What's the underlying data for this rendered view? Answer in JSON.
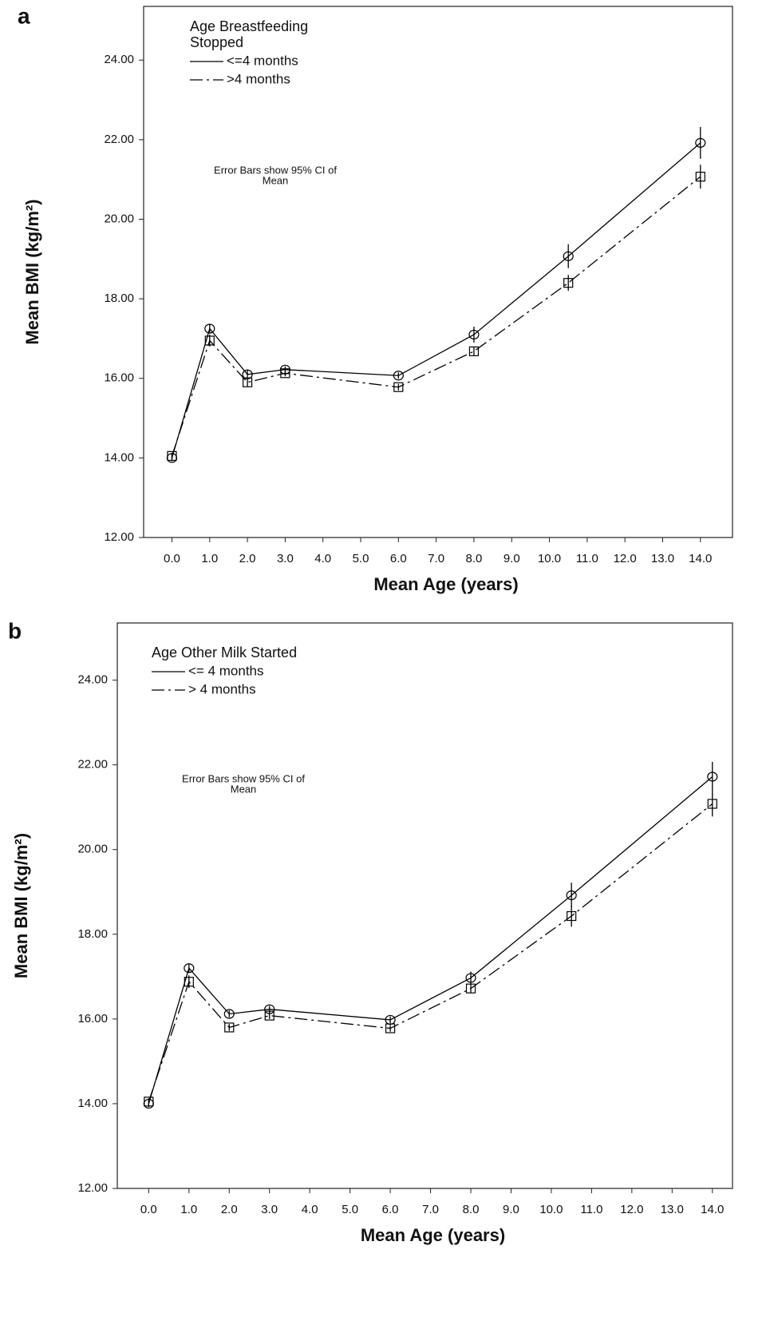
{
  "chart_data": [
    {
      "type": "line",
      "panel": "a",
      "legend_title_lines": [
        "Age Breastfeeding",
        "Stopped"
      ],
      "annotation_lines": [
        "Error Bars show  95% CI of",
        "Mean"
      ],
      "xlabel": "Mean Age (years)",
      "ylabel": "Mean BMI (kg/m²)",
      "x": [
        0,
        1,
        2,
        3,
        6,
        8,
        10.5,
        14
      ],
      "series": [
        {
          "name": "<=4 months",
          "color": "#000000",
          "line_style": "solid",
          "marker": "circle",
          "values": [
            14.0,
            17.25,
            16.1,
            16.22,
            16.07,
            17.1,
            19.07,
            21.92
          ],
          "errors": [
            0.08,
            0.1,
            0.1,
            0.08,
            0.08,
            0.2,
            0.3,
            0.4
          ]
        },
        {
          "name": ">4 months",
          "color": "#000000",
          "line_style": "dashdot",
          "marker": "square",
          "values": [
            14.05,
            16.95,
            15.9,
            16.13,
            15.78,
            16.68,
            18.4,
            21.07
          ],
          "errors": [
            0.08,
            0.15,
            0.1,
            0.08,
            0.08,
            0.1,
            0.2,
            0.3
          ]
        }
      ],
      "xlim": [
        -0.75,
        14.85
      ],
      "ylim": [
        12,
        25.35
      ],
      "xticks": [
        {
          "value": 0,
          "label": "0.0"
        },
        {
          "value": 1,
          "label": "1.0"
        },
        {
          "value": 2,
          "label": "2.0"
        },
        {
          "value": 3,
          "label": "3.0"
        },
        {
          "value": 4,
          "label": "4.0"
        },
        {
          "value": 5,
          "label": "5.0"
        },
        {
          "value": 6,
          "label": "6.0"
        },
        {
          "value": 7,
          "label": "7.0"
        },
        {
          "value": 8,
          "label": "8.0"
        },
        {
          "value": 9,
          "label": "9.0"
        },
        {
          "value": 10,
          "label": "10.0"
        },
        {
          "value": 11,
          "label": "11.0"
        },
        {
          "value": 12,
          "label": "12.0"
        },
        {
          "value": 13,
          "label": "13.0"
        },
        {
          "value": 14,
          "label": "14.0"
        }
      ],
      "yticks": [
        {
          "value": 12,
          "label": "12.00"
        },
        {
          "value": 14,
          "label": "14.00"
        },
        {
          "value": 16,
          "label": "16.00"
        },
        {
          "value": 18,
          "label": "18.00"
        },
        {
          "value": 20,
          "label": "20.00"
        },
        {
          "value": 22,
          "label": "22.00"
        },
        {
          "value": 24,
          "label": "24.00"
        }
      ]
    },
    {
      "type": "line",
      "panel": "b",
      "legend_title_lines": [
        "Age Other Milk Started"
      ],
      "annotation_lines": [
        "Error Bars show  95% CI of",
        "Mean"
      ],
      "xlabel": "Mean Age (years)",
      "ylabel": "Mean BMI (kg/m²)",
      "x": [
        0,
        1,
        2,
        3,
        6,
        8,
        10.5,
        14
      ],
      "series": [
        {
          "name": "<= 4 months",
          "color": "#000000",
          "line_style": "solid",
          "marker": "circle",
          "values": [
            14.0,
            17.2,
            16.12,
            16.23,
            15.98,
            16.97,
            18.92,
            21.72
          ],
          "errors": [
            0.08,
            0.1,
            0.08,
            0.08,
            0.08,
            0.15,
            0.3,
            0.35
          ]
        },
        {
          "name": "> 4 months",
          "color": "#000000",
          "line_style": "dashdot",
          "marker": "square",
          "values": [
            14.05,
            16.88,
            15.8,
            16.08,
            15.78,
            16.72,
            18.43,
            21.08
          ],
          "errors": [
            0.08,
            0.15,
            0.08,
            0.08,
            0.08,
            0.1,
            0.25,
            0.3
          ]
        }
      ],
      "xlim": [
        -0.78,
        14.5
      ],
      "ylim": [
        12,
        25.35
      ],
      "xticks": [
        {
          "value": 0,
          "label": "0.0"
        },
        {
          "value": 1,
          "label": "1.0"
        },
        {
          "value": 2,
          "label": "2.0"
        },
        {
          "value": 3,
          "label": "3.0"
        },
        {
          "value": 4,
          "label": "4.0"
        },
        {
          "value": 5,
          "label": "5.0"
        },
        {
          "value": 6,
          "label": "6.0"
        },
        {
          "value": 7,
          "label": "7.0"
        },
        {
          "value": 8,
          "label": "8.0"
        },
        {
          "value": 9,
          "label": "9.0"
        },
        {
          "value": 10,
          "label": "10.0"
        },
        {
          "value": 11,
          "label": "11.0"
        },
        {
          "value": 12,
          "label": "12.0"
        },
        {
          "value": 13,
          "label": "13.0"
        },
        {
          "value": 14,
          "label": "14.0"
        }
      ],
      "yticks": [
        {
          "value": 12,
          "label": "12.00"
        },
        {
          "value": 14,
          "label": "14.00"
        },
        {
          "value": 16,
          "label": "16.00"
        },
        {
          "value": 18,
          "label": "18.00"
        },
        {
          "value": 20,
          "label": "20.00"
        },
        {
          "value": 22,
          "label": "22.00"
        },
        {
          "value": 24,
          "label": "24.00"
        }
      ]
    }
  ]
}
